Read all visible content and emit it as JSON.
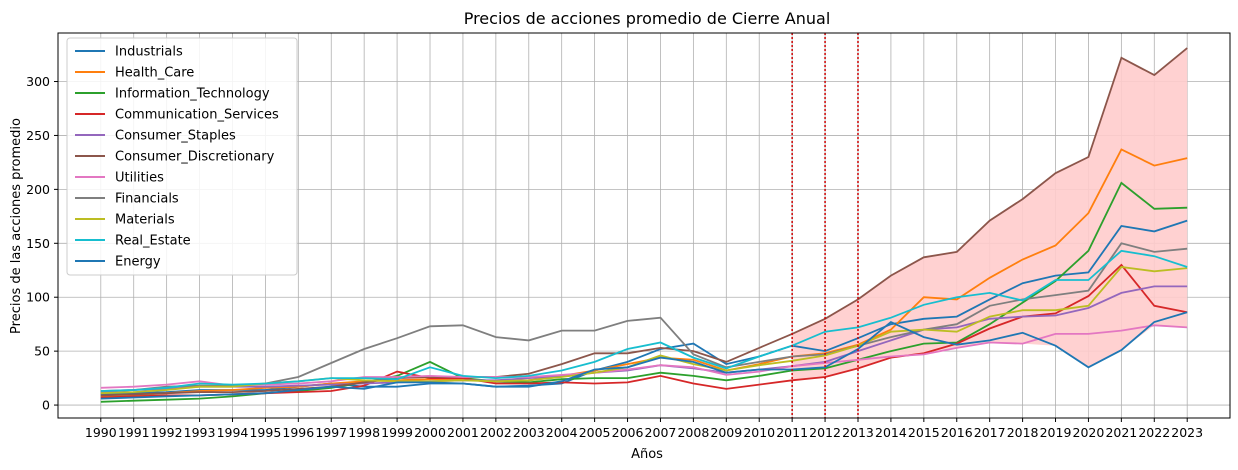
{
  "chart_data": {
    "type": "line",
    "title": "Precios de acciones promedio de Cierre Anual",
    "xlabel": "Años",
    "ylabel": "Precios de las acciones promedio",
    "x": [
      1990,
      1991,
      1992,
      1993,
      1994,
      1995,
      1996,
      1997,
      1998,
      1999,
      2000,
      2001,
      2002,
      2003,
      2004,
      2005,
      2006,
      2007,
      2008,
      2009,
      2010,
      2011,
      2012,
      2013,
      2014,
      2015,
      2016,
      2017,
      2018,
      2019,
      2020,
      2021,
      2022,
      2023
    ],
    "ylim": [
      -12,
      345
    ],
    "yticks": [
      0,
      50,
      100,
      150,
      200,
      250,
      300
    ],
    "grid": true,
    "legend_position": "top-left",
    "vlines": [
      2011,
      2012,
      2013
    ],
    "vline_color": "#cc0000",
    "fill_band_color": "#ffcccc",
    "series": [
      {
        "name": "Industrials",
        "color": "#1f77b4",
        "values": [
          10,
          11,
          12,
          14,
          14,
          14,
          17,
          20,
          17,
          17,
          20,
          20,
          17,
          18,
          20,
          32,
          40,
          52,
          57,
          38,
          45,
          55,
          50,
          62,
          75,
          80,
          82,
          98,
          113,
          120,
          123,
          166,
          161,
          171
        ]
      },
      {
        "name": "Health_Care",
        "color": "#ff7f0e",
        "values": [
          8,
          9,
          11,
          13,
          14,
          16,
          17,
          20,
          22,
          23,
          24,
          24,
          22,
          23,
          27,
          32,
          38,
          44,
          42,
          32,
          38,
          45,
          48,
          56,
          70,
          100,
          98,
          118,
          135,
          148,
          178,
          237,
          222,
          229
        ]
      },
      {
        "name": "Information_Technology",
        "color": "#2ca02c",
        "values": [
          3,
          4,
          5,
          6,
          8,
          11,
          13,
          16,
          21,
          27,
          40,
          25,
          22,
          21,
          24,
          25,
          25,
          30,
          27,
          23,
          27,
          32,
          34,
          42,
          50,
          57,
          58,
          75,
          95,
          115,
          143,
          206,
          182,
          183
        ]
      },
      {
        "name": "Communication_Services",
        "color": "#d62728",
        "values": [
          7,
          8,
          9,
          9,
          10,
          11,
          12,
          13,
          18,
          31,
          25,
          25,
          20,
          20,
          21,
          20,
          21,
          27,
          20,
          15,
          19,
          23,
          26,
          34,
          44,
          48,
          57,
          71,
          82,
          85,
          101,
          130,
          92,
          86
        ]
      },
      {
        "name": "Consumer_Staples",
        "color": "#9467bd",
        "values": [
          12,
          14,
          15,
          17,
          17,
          17,
          18,
          19,
          20,
          21,
          22,
          23,
          23,
          25,
          27,
          30,
          32,
          37,
          34,
          30,
          33,
          36,
          40,
          50,
          60,
          70,
          72,
          80,
          82,
          83,
          90,
          104,
          110,
          110
        ]
      },
      {
        "name": "Consumer_Discretionary",
        "color": "#8c564b",
        "values": [
          9,
          10,
          11,
          12,
          12,
          13,
          15,
          17,
          21,
          25,
          26,
          26,
          26,
          29,
          38,
          48,
          48,
          53,
          50,
          40,
          53,
          66,
          80,
          98,
          120,
          137,
          142,
          171,
          191,
          215,
          230,
          322,
          306,
          331
        ]
      },
      {
        "name": "Utilities",
        "color": "#e377c2",
        "values": [
          16,
          17,
          19,
          22,
          18,
          19,
          20,
          22,
          26,
          26,
          27,
          26,
          26,
          26,
          28,
          30,
          33,
          37,
          35,
          28,
          31,
          36,
          39,
          42,
          45,
          47,
          53,
          58,
          57,
          66,
          66,
          69,
          74,
          72
        ]
      },
      {
        "name": "Financials",
        "color": "#7f7f7f",
        "values": [
          13,
          14,
          17,
          18,
          18,
          20,
          26,
          39,
          52,
          62,
          73,
          74,
          63,
          60,
          69,
          69,
          78,
          81,
          47,
          35,
          40,
          45,
          47,
          55,
          63,
          70,
          75,
          92,
          98,
          102,
          106,
          150,
          142,
          145
        ]
      },
      {
        "name": "Materials",
        "color": "#bcbd22",
        "values": [
          11,
          12,
          14,
          17,
          17,
          20,
          22,
          25,
          23,
          22,
          22,
          23,
          22,
          23,
          26,
          30,
          35,
          46,
          38,
          32,
          37,
          41,
          46,
          55,
          68,
          70,
          68,
          82,
          88,
          88,
          92,
          128,
          124,
          127
        ]
      },
      {
        "name": "Real_Estate",
        "color": "#17becf",
        "values": [
          13,
          14,
          16,
          20,
          19,
          20,
          22,
          25,
          25,
          24,
          35,
          27,
          25,
          27,
          32,
          40,
          52,
          58,
          44,
          34,
          45,
          55,
          68,
          72,
          81,
          93,
          100,
          104,
          97,
          116,
          116,
          143,
          138,
          128
        ]
      },
      {
        "name": "Energy",
        "color": "#1f77b4",
        "values": [
          6,
          7,
          8,
          9,
          10,
          11,
          14,
          17,
          15,
          21,
          21,
          20,
          17,
          17,
          22,
          33,
          35,
          44,
          40,
          30,
          33,
          33,
          35,
          52,
          77,
          63,
          56,
          60,
          67,
          55,
          35,
          51,
          77,
          86
        ]
      }
    ]
  }
}
